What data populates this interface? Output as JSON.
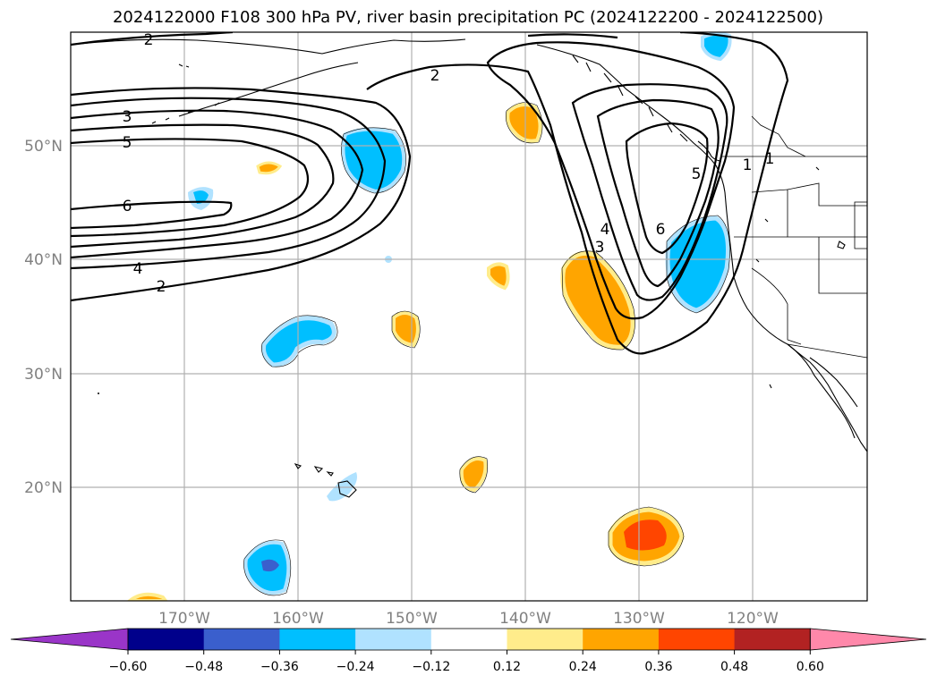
{
  "title": "2024122000 F108 300 hPa PV, river basin precipitation PC (2024122200 - 2024122500)",
  "lon_labels": [
    "170°W",
    "160°W",
    "150°W",
    "140°W",
    "130°W",
    "120°W"
  ],
  "lat_labels": [
    "50°N",
    "40°N",
    "30°N",
    "20°N"
  ],
  "contour_labels": [
    "2",
    "3",
    "5",
    "6",
    "4",
    "2",
    "2",
    "4",
    "3",
    "6",
    "5",
    "1",
    "1"
  ],
  "colorbar": {
    "ticks": [
      "−0.60",
      "−0.48",
      "−0.36",
      "−0.24",
      "−0.12",
      "0.12",
      "0.24",
      "0.36",
      "0.48",
      "0.60"
    ],
    "colors": [
      "#9a35c8",
      "#00008b",
      "#3a5fcd",
      "#00bfff",
      "#b0e2ff",
      "#ffffff",
      "#ffec8b",
      "#ffa500",
      "#ff4500",
      "#b22222",
      "#ff88aa"
    ]
  },
  "colors": {
    "pos_light": "#ffec8b",
    "pos_mid": "#ffa500",
    "pos_high": "#ff4500",
    "neg_light": "#b0e2ff",
    "neg_mid": "#00bfff",
    "neg_high": "#3a5fcd"
  }
}
